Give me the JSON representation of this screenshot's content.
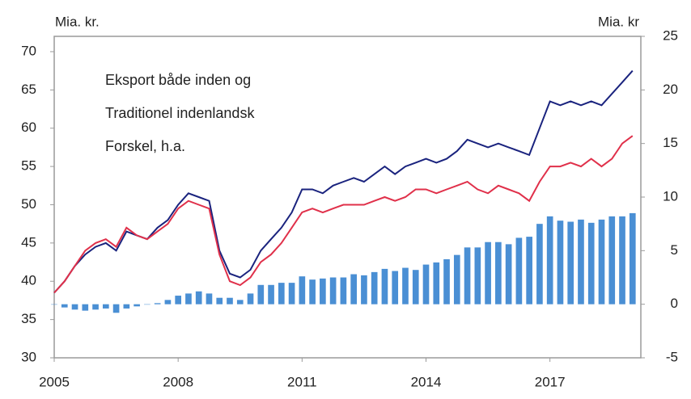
{
  "chart_data": {
    "type": "combo",
    "y_label": "Mia. kr.",
    "y2_label": "Mia. kr",
    "x": [
      2005,
      2005.25,
      2005.5,
      2005.75,
      2006,
      2006.25,
      2006.5,
      2006.75,
      2007,
      2007.25,
      2007.5,
      2007.75,
      2008,
      2008.25,
      2008.5,
      2008.75,
      2009,
      2009.25,
      2009.5,
      2009.75,
      2010,
      2010.25,
      2010.5,
      2010.75,
      2011,
      2011.25,
      2011.5,
      2011.75,
      2012,
      2012.25,
      2012.5,
      2012.75,
      2013,
      2013.25,
      2013.5,
      2013.75,
      2014,
      2014.25,
      2014.5,
      2014.75,
      2015,
      2015.25,
      2015.5,
      2015.75,
      2016,
      2016.25,
      2016.5,
      2016.75,
      2017,
      2017.25,
      2017.5,
      2017.75,
      2018,
      2018.25,
      2018.5,
      2018.75,
      2019
    ],
    "series": [
      {
        "name": "Forskel, h.a.",
        "type": "bar",
        "axis": "y2",
        "color": "#4a8fd4",
        "values": [
          0,
          -0.3,
          -0.5,
          -0.6,
          -0.5,
          -0.4,
          -0.8,
          -0.4,
          -0.2,
          0,
          0.1,
          0.4,
          0.8,
          1,
          1.2,
          1,
          0.6,
          0.6,
          0.4,
          1,
          1.8,
          1.8,
          2,
          2,
          2.6,
          2.3,
          2.4,
          2.5,
          2.5,
          2.8,
          2.7,
          3,
          3.3,
          3.1,
          3.4,
          3.2,
          3.7,
          3.9,
          4.2,
          4.6,
          5.3,
          5.3,
          5.8,
          5.8,
          5.6,
          6.2,
          6.3,
          7.5,
          8.2,
          7.8,
          7.7,
          7.9,
          7.6,
          7.9,
          8.2,
          8.2,
          8.5
        ]
      },
      {
        "name": "Eksport både inden og",
        "type": "line",
        "color": "#1a237e",
        "values": [
          38.5,
          40,
          42,
          43.5,
          44.5,
          45,
          44,
          46.5,
          46,
          45.5,
          47,
          48,
          50,
          51.5,
          51,
          50.5,
          44,
          41,
          40.5,
          41.5,
          44,
          45.5,
          47,
          49,
          52,
          52,
          51.5,
          52.5,
          53,
          53.5,
          53,
          54,
          55,
          54,
          55,
          55.5,
          56,
          55.5,
          56,
          57,
          58.5,
          58,
          57.5,
          58,
          57.5,
          57,
          56.5,
          60,
          63.5,
          63,
          63.5,
          63,
          63.5,
          63,
          64.5,
          66,
          67.5
        ]
      },
      {
        "name": "Traditionel indenlandsk",
        "type": "line",
        "color": "#e0304a",
        "values": [
          38.5,
          40,
          42,
          44,
          45,
          45.5,
          44.5,
          47,
          46,
          45.5,
          46.5,
          47.5,
          49.5,
          50.5,
          50,
          49.5,
          43.5,
          40,
          39.5,
          40.5,
          42.5,
          43.5,
          45,
          47,
          49,
          49.5,
          49,
          49.5,
          50,
          50,
          50,
          50.5,
          51,
          50.5,
          51,
          52,
          52,
          51.5,
          52,
          52.5,
          53,
          52,
          51.5,
          52.5,
          52,
          51.5,
          50.5,
          53,
          55,
          55,
          55.5,
          55,
          56,
          55,
          56,
          58,
          59
        ]
      }
    ],
    "xlim": [
      2005,
      2019.2
    ],
    "xticks": [
      2005,
      2008,
      2011,
      2014,
      2017
    ],
    "ylim": [
      30,
      72
    ],
    "yticks": [
      30,
      35,
      40,
      45,
      50,
      55,
      60,
      65,
      70
    ],
    "y2lim": [
      -5,
      25
    ],
    "y2ticks": [
      -5,
      0,
      5,
      10,
      15,
      20,
      25
    ]
  }
}
